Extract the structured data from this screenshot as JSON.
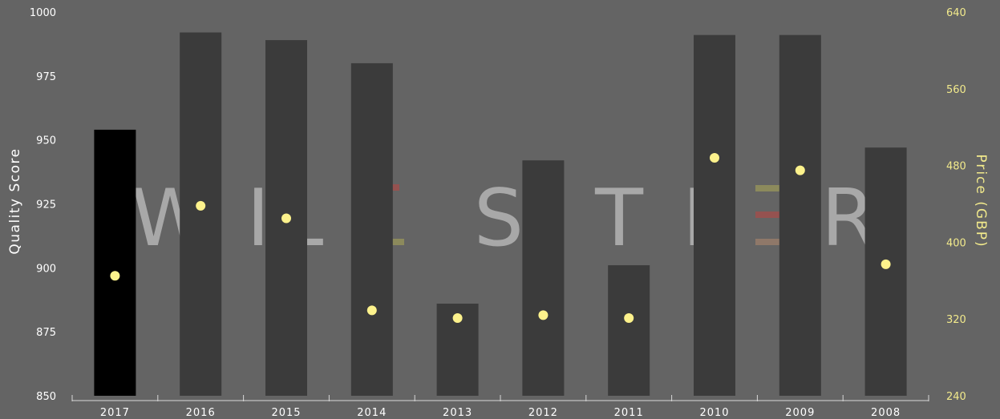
{
  "chart_data": {
    "type": "bar",
    "categories": [
      "2017",
      "2016",
      "2015",
      "2014",
      "2013",
      "2012",
      "2011",
      "2010",
      "2009",
      "2008"
    ],
    "series": [
      {
        "values": [
          954,
          992,
          989,
          980,
          886,
          942,
          901,
          991,
          991,
          947
        ],
        "kind": "bar",
        "axis": "left"
      },
      {
        "values": [
          365,
          438,
          425,
          329,
          321,
          324,
          321,
          488,
          475,
          377
        ],
        "kind": "scatter",
        "axis": "right"
      }
    ],
    "highlighted_category": "2017",
    "ylabel": "Quality Score",
    "ylim": [
      850,
      1000
    ],
    "y_ticks": [
      "1000",
      "975",
      "950",
      "925",
      "900",
      "875",
      "850"
    ],
    "ylabel_right": "Price (GBP)",
    "ylim_right": [
      240,
      640
    ],
    "y_ticks_right": [
      "640",
      "560",
      "480",
      "400",
      "320",
      "240"
    ],
    "grid": false,
    "watermark": "WILLSTER",
    "colors": {
      "background": "#646464",
      "bar": "#3b3b3b",
      "bar_highlight": "#000000",
      "point": "#fdf28c",
      "right_axis_text": "#f2ea8c",
      "watermark": "#a8a8a8",
      "watermark_accent_red": "#a14e4b",
      "watermark_accent_olive": "#96935a",
      "watermark_accent_tan": "#9a7d6a"
    }
  }
}
